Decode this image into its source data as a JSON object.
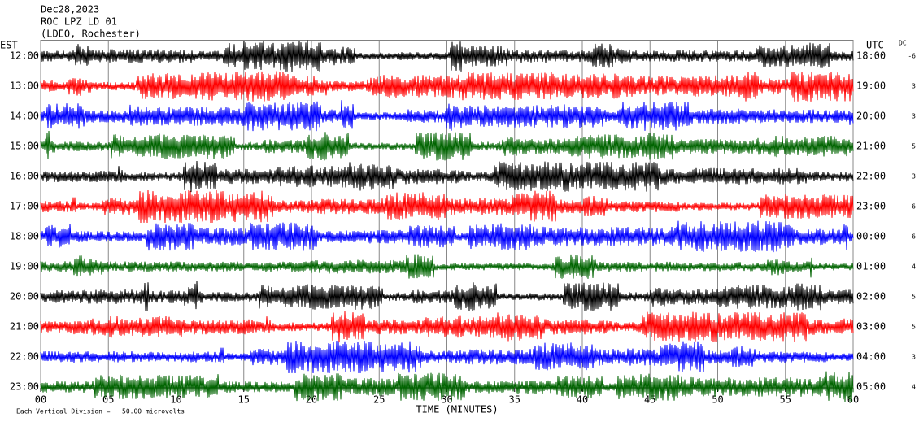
{
  "header": {
    "date": "Dec28,2023",
    "station": "ROC LPZ LD 01",
    "location": "(LDEO, Rochester)"
  },
  "left_label": "EST",
  "right_label": "UTC",
  "dc_label": "DC",
  "rows": [
    {
      "est": "12:00",
      "utc": "18:00",
      "dc": -6,
      "color": "#000000"
    },
    {
      "est": "13:00",
      "utc": "19:00",
      "dc": 3,
      "color": "#ff0000"
    },
    {
      "est": "14:00",
      "utc": "20:00",
      "dc": 3,
      "color": "#0000ff"
    },
    {
      "est": "15:00",
      "utc": "21:00",
      "dc": 5,
      "color": "#006400"
    },
    {
      "est": "16:00",
      "utc": "22:00",
      "dc": 3,
      "color": "#000000"
    },
    {
      "est": "17:00",
      "utc": "23:00",
      "dc": 6,
      "color": "#ff0000"
    },
    {
      "est": "18:00",
      "utc": "00:00",
      "dc": 6,
      "color": "#0000ff"
    },
    {
      "est": "19:00",
      "utc": "01:00",
      "dc": 4,
      "color": "#006400"
    },
    {
      "est": "20:00",
      "utc": "02:00",
      "dc": 5,
      "color": "#000000"
    },
    {
      "est": "21:00",
      "utc": "03:00",
      "dc": 5,
      "color": "#ff0000"
    },
    {
      "est": "22:00",
      "utc": "04:00",
      "dc": 3,
      "color": "#0000ff"
    },
    {
      "est": "23:00",
      "utc": "05:00",
      "dc": 4,
      "color": "#006400"
    }
  ],
  "x_axis": {
    "range": [
      0,
      60
    ],
    "label": "TIME (MINUTES)",
    "ticks": [
      {
        "value": 0,
        "label": "00"
      },
      {
        "value": 5,
        "label": "05"
      },
      10,
      15,
      20,
      25,
      30,
      35,
      40,
      45,
      50,
      55,
      60
    ]
  },
  "footer": "Each Vertical Division =   50.00 microvolts"
}
